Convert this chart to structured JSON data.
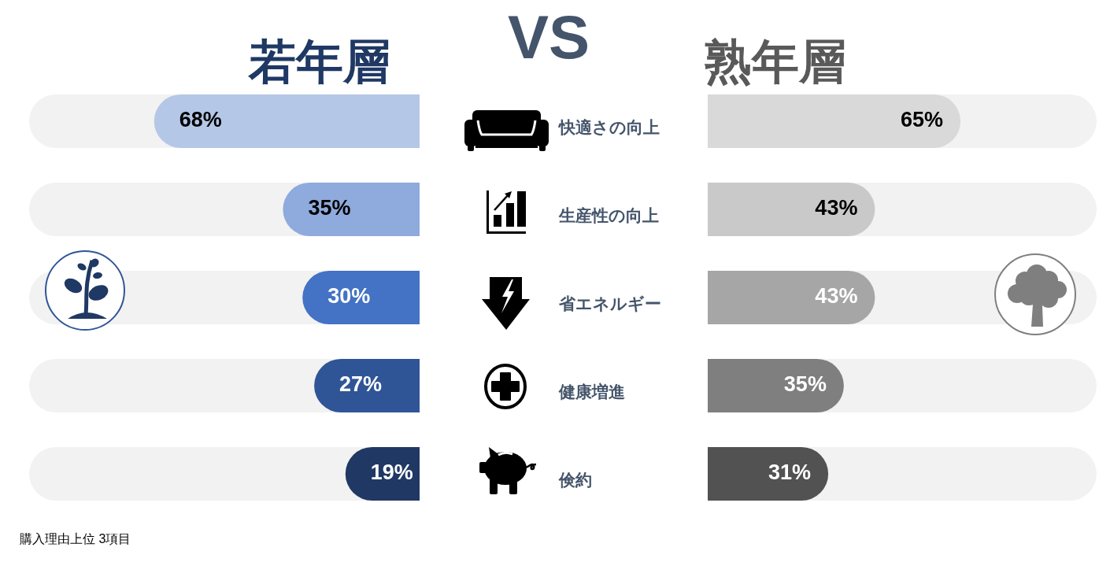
{
  "chart_data": [
    {
      "type": "bar",
      "orientation": "horizontal",
      "title": "若年層",
      "annotations": [
        "VS",
        "購入理由上位 3項目"
      ],
      "categories": [
        "快適さの向上",
        "生産性の向上",
        "省エネルギー",
        "健康増進",
        "倹約"
      ],
      "values": [
        68,
        35,
        30,
        27,
        19
      ],
      "value_labels": [
        "68%",
        "35%",
        "30%",
        "27%",
        "19%"
      ],
      "colors": [
        "#b4c7e7",
        "#8faadc",
        "#4472c4",
        "#2f5597",
        "#203864"
      ],
      "xlim": [
        100,
        0
      ],
      "tick_labels": "y"
    },
    {
      "type": "bar",
      "orientation": "horizontal",
      "title": "熟年層",
      "categories": [
        null,
        null,
        null,
        null,
        null
      ],
      "values": [
        65,
        43,
        43,
        35,
        31
      ],
      "value_labels": [
        "65%",
        "43%",
        "43%",
        "35%",
        "31%"
      ],
      "colors": [
        "#d9d9d9",
        "#c9c9c9",
        "#a6a6a6",
        "#7f7f7f",
        "#525252"
      ],
      "xlim": [
        0,
        100
      ],
      "tick_labels": false
    }
  ]
}
